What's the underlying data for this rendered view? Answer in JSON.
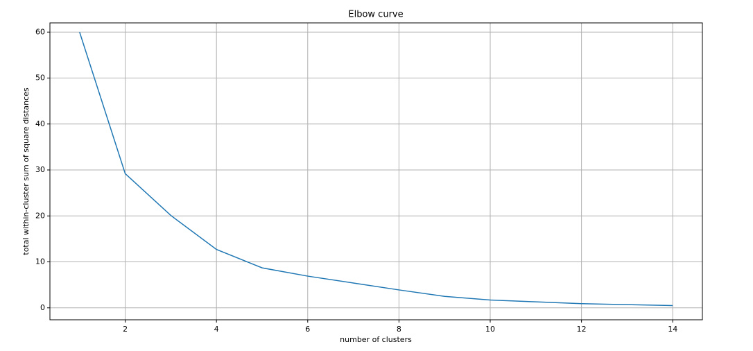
{
  "chart_data": {
    "type": "line",
    "title": "Elbow curve",
    "x_label": "number of clusters",
    "y_label": "total within-cluster sum of square distances",
    "x": [
      1,
      2,
      3,
      4,
      5,
      6,
      7,
      8,
      9,
      10,
      11,
      12,
      13,
      14
    ],
    "series": [
      {
        "color": "#1f77b4",
        "values": [
          60,
          29.2,
          20.1,
          12.7,
          8.7,
          6.9,
          5.4,
          3.9,
          2.5,
          1.7,
          1.3,
          0.9,
          0.7,
          0.5
        ]
      }
    ],
    "xlim": [
      0.35,
      14.65
    ],
    "ylim": [
      -2.6,
      62
    ],
    "xticks": [
      2,
      4,
      6,
      8,
      10,
      12,
      14
    ],
    "yticks": [
      0,
      10,
      20,
      30,
      40,
      50,
      60
    ],
    "grid": true
  }
}
